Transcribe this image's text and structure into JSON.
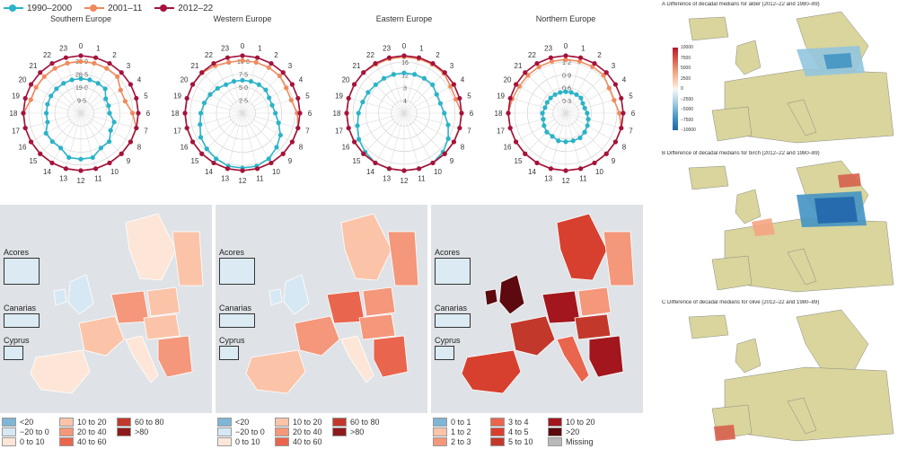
{
  "legend": {
    "items": [
      {
        "label": "1990–2000",
        "color": "#2bb3c8"
      },
      {
        "label": "2001–11",
        "color": "#f08a5d"
      },
      {
        "label": "2012–22",
        "color": "#a4133c"
      }
    ]
  },
  "chart_data": [
    {
      "type": "radar",
      "title": "Southern Europe",
      "hours": [
        "0",
        "1",
        "2",
        "3",
        "4",
        "5",
        "6",
        "7",
        "8",
        "9",
        "10",
        "11",
        "12",
        "13",
        "14",
        "15",
        "16",
        "17",
        "18",
        "19",
        "20",
        "21",
        "22",
        "23"
      ],
      "radial_ticks": [
        "9·5",
        "19·0",
        "28·5",
        "38·0"
      ],
      "rmax": 42,
      "series": [
        {
          "name": "1990–2000",
          "values": [
            6,
            6,
            6,
            6,
            5,
            5,
            5,
            6,
            6,
            7,
            7,
            8,
            8,
            8,
            7,
            7,
            7,
            6,
            6,
            6,
            6,
            6,
            6,
            6
          ]
        },
        {
          "name": "2001–11",
          "values": [
            9,
            9,
            9,
            9,
            8,
            8,
            9,
            10,
            11,
            12,
            12,
            12,
            12,
            12,
            12,
            11,
            11,
            10,
            10,
            9,
            9,
            9,
            9,
            9
          ]
        },
        {
          "name": "2012–22",
          "values": [
            12,
            12,
            12,
            12,
            11,
            11,
            12,
            13,
            15,
            16,
            17,
            17,
            17,
            17,
            16,
            15,
            14,
            13,
            13,
            12,
            12,
            12,
            12,
            12
          ]
        }
      ]
    },
    {
      "type": "radar",
      "title": "Western Europe",
      "hours": [
        "0",
        "1",
        "2",
        "3",
        "4",
        "5",
        "6",
        "7",
        "8",
        "9",
        "10",
        "11",
        "12",
        "13",
        "14",
        "15",
        "16",
        "17",
        "18",
        "19",
        "20",
        "21",
        "22",
        "23"
      ],
      "radial_ticks": [
        "2·5",
        "5·0",
        "7·5",
        "10·0"
      ],
      "rmax": 11,
      "series": [
        {
          "name": "1990–2000",
          "values": [
            1.5,
            1.5,
            1.5,
            1.5,
            1.4,
            1.4,
            1.5,
            1.7,
            2.0,
            2.2,
            2.4,
            2.5,
            2.5,
            2.5,
            2.4,
            2.3,
            2.2,
            2.0,
            1.9,
            1.8,
            1.7,
            1.6,
            1.5,
            1.5
          ]
        },
        {
          "name": "2001–11",
          "values": [
            2.4,
            2.4,
            2.4,
            2.4,
            2.3,
            2.3,
            2.5,
            2.8,
            3.2,
            3.5,
            3.7,
            3.8,
            3.8,
            3.8,
            3.7,
            3.6,
            3.4,
            3.2,
            3.0,
            2.8,
            2.7,
            2.6,
            2.5,
            2.4
          ]
        },
        {
          "name": "2012–22",
          "values": [
            3.2,
            3.2,
            3.2,
            3.2,
            3.1,
            3.1,
            3.3,
            3.7,
            4.2,
            4.6,
            4.9,
            5.0,
            5.0,
            5.0,
            4.9,
            4.7,
            4.5,
            4.2,
            3.9,
            3.7,
            3.5,
            3.4,
            3.3,
            3.2
          ]
        }
      ]
    },
    {
      "type": "radar",
      "title": "Eastern Europe",
      "hours": [
        "0",
        "1",
        "2",
        "3",
        "4",
        "5",
        "6",
        "7",
        "8",
        "9",
        "10",
        "11",
        "12",
        "13",
        "14",
        "15",
        "16",
        "17",
        "18",
        "19",
        "20",
        "21",
        "22",
        "23"
      ],
      "radial_ticks": [
        "4",
        "8",
        "12",
        "16"
      ],
      "rmax": 18,
      "series": [
        {
          "name": "1990–2000",
          "values": [
            3,
            3,
            3,
            3,
            2.8,
            2.8,
            3,
            3.4,
            3.8,
            4.1,
            4.3,
            4.4,
            4.4,
            4.4,
            4.3,
            4.1,
            3.9,
            3.6,
            3.4,
            3.2,
            3.1,
            3,
            3,
            3
          ]
        },
        {
          "name": "2001–11",
          "values": [
            4.2,
            4.2,
            4.2,
            4.2,
            4,
            4,
            4.3,
            4.8,
            5.4,
            5.9,
            6.2,
            6.3,
            6.3,
            6.3,
            6.2,
            5.9,
            5.6,
            5.2,
            4.9,
            4.6,
            4.4,
            4.3,
            4.2,
            4.2
          ]
        },
        {
          "name": "2012–22",
          "values": [
            5,
            5,
            5,
            5,
            4.8,
            4.8,
            5.1,
            5.7,
            6.5,
            7.1,
            7.5,
            7.6,
            7.6,
            7.6,
            7.5,
            7.1,
            6.7,
            6.2,
            5.8,
            5.5,
            5.3,
            5.1,
            5,
            5
          ]
        }
      ]
    },
    {
      "type": "radar",
      "title": "Northern Europe",
      "hours": [
        "0",
        "1",
        "2",
        "3",
        "4",
        "5",
        "6",
        "7",
        "8",
        "9",
        "10",
        "11",
        "12",
        "13",
        "14",
        "15",
        "16",
        "17",
        "18",
        "19",
        "20",
        "21",
        "22",
        "23"
      ],
      "radial_ticks": [
        "0·3",
        "0·6",
        "0·9",
        "1·2"
      ],
      "rmax": 1.35,
      "series": [
        {
          "name": "1990–2000",
          "values": [
            0.12,
            0.12,
            0.12,
            0.12,
            0.11,
            0.11,
            0.12,
            0.13,
            0.14,
            0.15,
            0.16,
            0.16,
            0.16,
            0.16,
            0.15,
            0.15,
            0.14,
            0.13,
            0.13,
            0.12,
            0.12,
            0.12,
            0.12,
            0.12
          ]
        },
        {
          "name": "2001–11",
          "values": [
            0.3,
            0.3,
            0.3,
            0.3,
            0.28,
            0.28,
            0.3,
            0.33,
            0.37,
            0.4,
            0.42,
            0.43,
            0.43,
            0.43,
            0.42,
            0.4,
            0.38,
            0.35,
            0.33,
            0.31,
            0.3,
            0.3,
            0.3,
            0.3
          ]
        },
        {
          "name": "2012–22",
          "values": [
            0.45,
            0.45,
            0.45,
            0.45,
            0.43,
            0.43,
            0.46,
            0.5,
            0.56,
            0.6,
            0.63,
            0.65,
            0.65,
            0.65,
            0.63,
            0.6,
            0.57,
            0.53,
            0.5,
            0.47,
            0.46,
            0.45,
            0.45,
            0.45
          ]
        }
      ]
    }
  ],
  "maps": [
    {
      "insets": [
        "Acores",
        "Canarias",
        "Cyprus"
      ],
      "legend": [
        {
          "label": "<20",
          "color": "#7fb5d5"
        },
        {
          "label": "10 to 20",
          "color": "#fbc4a9"
        },
        {
          "label": "60 to 80",
          "color": "#c2392b"
        },
        {
          "label": "−20 to 0",
          "color": "#d6e8f3"
        },
        {
          "label": "20 to 40",
          "color": "#f4977a"
        },
        {
          "label": ">80",
          "color": "#8e1b1b"
        },
        {
          "label": "0 to 10",
          "color": "#fde6d8"
        },
        {
          "label": "40 to 60",
          "color": "#e9654e"
        }
      ]
    },
    {
      "insets": [
        "Acores",
        "Canarias",
        "Cyprus"
      ],
      "legend": [
        {
          "label": "<20",
          "color": "#7fb5d5"
        },
        {
          "label": "10 to 20",
          "color": "#fbc4a9"
        },
        {
          "label": "60 to 80",
          "color": "#c2392b"
        },
        {
          "label": "−20 to 0",
          "color": "#d6e8f3"
        },
        {
          "label": "20 to 40",
          "color": "#f4977a"
        },
        {
          "label": ">80",
          "color": "#8e1b1b"
        },
        {
          "label": "0 to 10",
          "color": "#fde6d8"
        },
        {
          "label": "40 to 60",
          "color": "#e9654e"
        }
      ]
    },
    {
      "insets": [
        "Acores",
        "Canarias",
        "Cyprus"
      ],
      "legend": [
        {
          "label": "0 to 1",
          "color": "#7fb5d5"
        },
        {
          "label": "3 to 4",
          "color": "#e9654e"
        },
        {
          "label": "10 to 20",
          "color": "#a3161d"
        },
        {
          "label": "1 to 2",
          "color": "#fbc4a9"
        },
        {
          "label": "4 to 5",
          "color": "#d7402f"
        },
        {
          "label": ">20",
          "color": "#5c0a0f"
        },
        {
          "label": "2 to 3",
          "color": "#f4977a"
        },
        {
          "label": "5 to 10",
          "color": "#c2392b"
        },
        {
          "label": "Missing",
          "color": "#b9b9b9"
        }
      ]
    }
  ],
  "right_panels": [
    {
      "title": "A  Difference of decadal medians for alder (2012–22 and 1980–89)"
    },
    {
      "title": "B  Difference of decadal medians for birch (2012–22 and 1980–89)"
    },
    {
      "title": "C  Difference of decadal medians for olive (2012–22 and 1980–89)"
    }
  ],
  "colorbar_ticks": [
    "10000",
    "7500",
    "5000",
    "2500",
    "0",
    "−2500",
    "−5000",
    "−7500",
    "−10000"
  ]
}
